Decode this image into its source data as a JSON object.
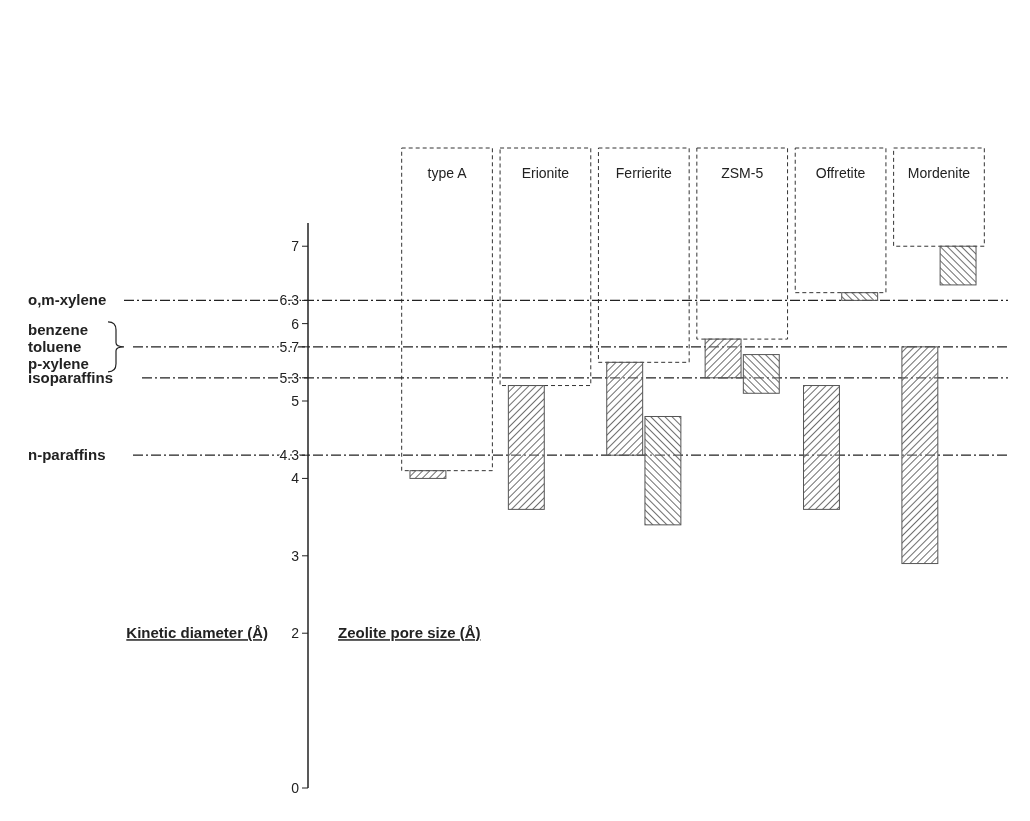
{
  "chart_data": {
    "type": "bar",
    "xlabel": "Zeolite pore size (Å)",
    "ylabel": "Kinetic diameter (Å)",
    "categories": [
      "type A",
      "Erionite",
      "Ferrierite",
      "ZSM-5",
      "Offretite",
      "Mordenite"
    ],
    "series": [
      {
        "color": "#555555",
        "base": [
          4.0,
          3.6,
          4.3,
          5.3,
          3.6,
          2.9
        ],
        "values": [
          0.1,
          1.6,
          1.2,
          0.5,
          1.6,
          2.8
        ]
      },
      {
        "color": "#555555",
        "base": [
          null,
          null,
          3.4,
          5.1,
          6.3,
          6.5
        ],
        "values": [
          null,
          null,
          1.4,
          0.5,
          0.1,
          0.5
        ]
      }
    ],
    "ylim": [
      0,
      7.3
    ],
    "yticks": [
      0,
      2,
      3,
      4,
      {
        "value": 4.3,
        "label": "4.3"
      },
      5,
      {
        "value": 5.3,
        "label": "5.3"
      },
      {
        "value": 5.7,
        "label": "5.7"
      },
      6,
      {
        "value": 6.3,
        "label": "6.3"
      },
      7
    ],
    "ref_lines": [
      {
        "axis": "y",
        "value": 6.3,
        "label": "o,m-xylene",
        "line_style": "dashdot"
      },
      {
        "axis": "y",
        "value": 5.7,
        "label": "benzene\ntoluene\np-xylene",
        "line_style": "dashdot"
      },
      {
        "axis": "y",
        "value": 5.3,
        "label": "isoparaffins",
        "line_style": "dashdot"
      },
      {
        "axis": "y",
        "value": 4.3,
        "label": "n-paraffins",
        "line_style": "dashdot"
      }
    ],
    "line_style": "dashed"
  }
}
